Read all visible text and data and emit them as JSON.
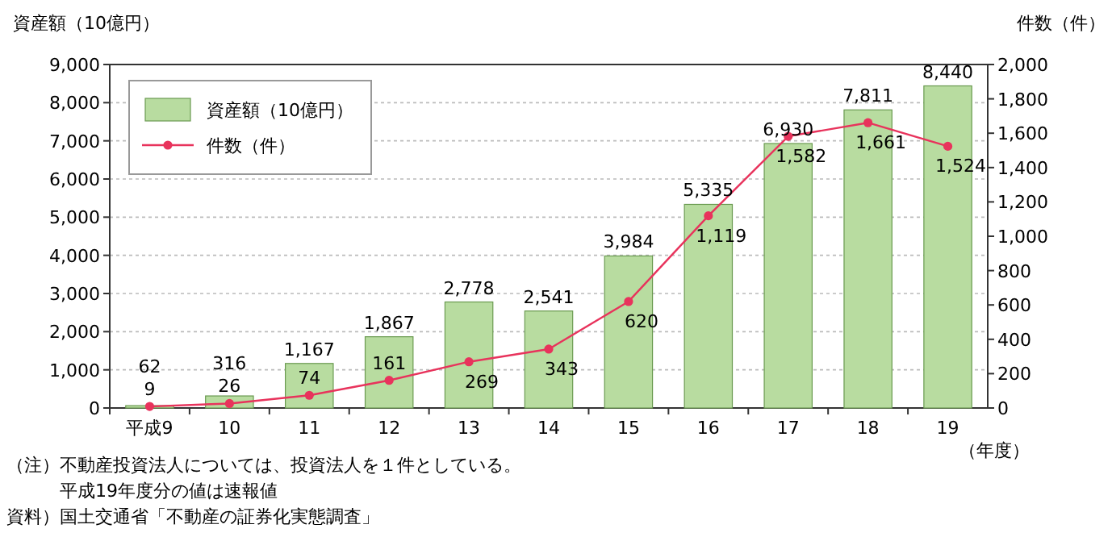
{
  "chart_data": {
    "type": "bar",
    "categories": [
      "平成9",
      "10",
      "11",
      "12",
      "13",
      "14",
      "15",
      "16",
      "17",
      "18",
      "19"
    ],
    "series": [
      {
        "name": "資産額（10億円）",
        "axis": "y",
        "color": "#b8dca0",
        "values": [
          62,
          316,
          1167,
          1867,
          2778,
          2541,
          3984,
          5335,
          6930,
          7811,
          8440
        ],
        "value_labels": [
          "62",
          "316",
          "1,167",
          "1,867",
          "2,778",
          "2,541",
          "3,984",
          "5,335",
          "6,930",
          "7,811",
          "8,440"
        ]
      },
      {
        "name": "件数（件）",
        "type": "line",
        "axis": "y2",
        "color": "#e8335c",
        "values": [
          9,
          26,
          74,
          161,
          269,
          343,
          620,
          1119,
          1582,
          1661,
          1524
        ],
        "value_labels": [
          "9",
          "26",
          "74",
          "161",
          "269",
          "343",
          "620",
          "1,119",
          "1,582",
          "1,661",
          "1,524"
        ]
      }
    ],
    "xlabel": "（年度）",
    "ylabel": "資産額（10億円）",
    "y2label": "件数（件）",
    "ylim": [
      0,
      9000
    ],
    "yticks": [
      0,
      {
        "value": 1000,
        "label": "1,000"
      },
      {
        "value": 2000,
        "label": "2,000"
      },
      {
        "value": 3000,
        "label": "3,000"
      },
      {
        "value": 4000,
        "label": "4,000"
      },
      {
        "value": 5000,
        "label": "5,000"
      },
      {
        "value": 6000,
        "label": "6,000"
      },
      {
        "value": 7000,
        "label": "7,000"
      },
      {
        "value": 8000,
        "label": "8,000"
      },
      {
        "value": 9000,
        "label": "9,000"
      }
    ],
    "y2lim": [
      0,
      2000
    ],
    "y2ticks": [
      0,
      200,
      400,
      600,
      800,
      {
        "value": 1000,
        "label": "1,000"
      },
      {
        "value": 1200,
        "label": "1,200"
      },
      {
        "value": 1400,
        "label": "1,400"
      },
      {
        "value": 1600,
        "label": "1,600"
      },
      {
        "value": 1800,
        "label": "1,800"
      },
      {
        "value": 2000,
        "label": "2,000"
      }
    ],
    "grid": "y",
    "legend": "top left",
    "marker": "circle",
    "line_style": "solid",
    "annotations": [
      "（注）不動産投資法人については、投資法人を１件としている。",
      "　　　平成19年度分の値は速報値",
      "資料）国土交通省「不動産の証券化実態調査」"
    ]
  }
}
